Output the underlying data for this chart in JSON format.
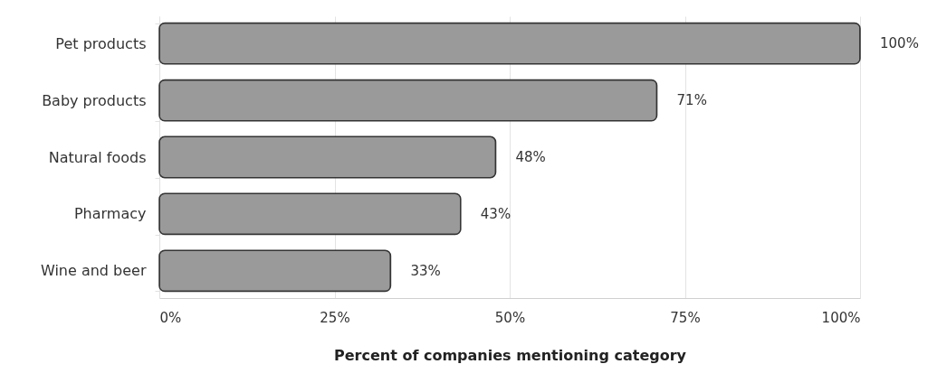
{
  "chart_data": {
    "type": "bar",
    "orientation": "horizontal",
    "categories": [
      "Pet products",
      "Baby products",
      "Natural foods",
      "Pharmacy",
      "Wine and beer"
    ],
    "values": [
      100,
      71,
      48,
      43,
      33
    ],
    "value_labels": [
      "100%",
      "71%",
      "48%",
      "43%",
      "33%"
    ],
    "color": "#9a9a9a",
    "xlabel": "Percent of companies mentioning category",
    "xlim": [
      0,
      100
    ],
    "xticks": [
      {
        "value": 0,
        "label": "0%"
      },
      {
        "value": 25,
        "label": "25%"
      },
      {
        "value": 50,
        "label": "50%"
      },
      {
        "value": 75,
        "label": "75%"
      },
      {
        "value": 100,
        "label": "100%"
      }
    ],
    "grid": "x"
  }
}
